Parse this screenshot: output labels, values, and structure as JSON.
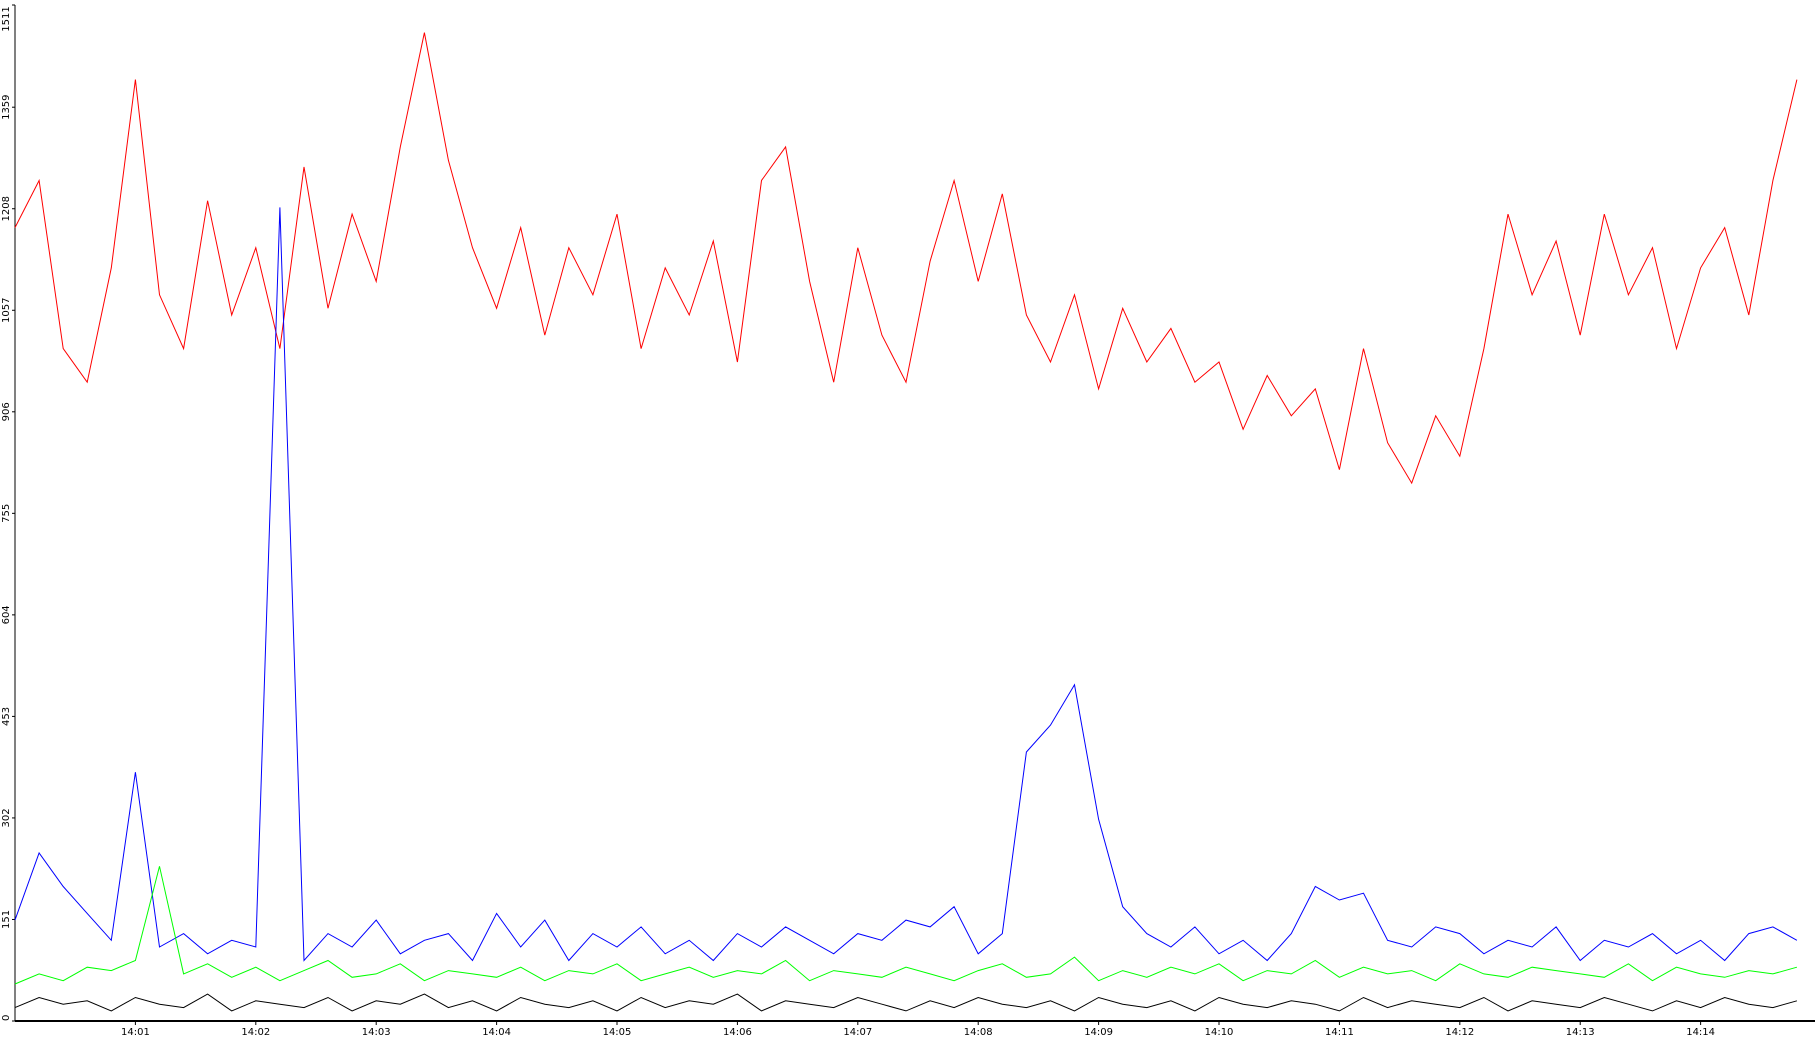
{
  "chart_data": {
    "type": "line",
    "x": [
      0,
      0.2,
      0.4,
      0.6,
      0.8,
      1,
      1.2,
      1.4,
      1.6,
      1.8,
      2,
      2.2,
      2.4,
      2.6,
      2.8,
      3,
      3.2,
      3.4,
      3.6,
      3.8,
      4,
      4.2,
      4.4,
      4.6,
      4.8,
      5,
      5.2,
      5.4,
      5.6,
      5.8,
      6,
      6.2,
      6.4,
      6.6,
      6.8,
      7,
      7.2,
      7.4,
      7.6,
      7.8,
      8,
      8.2,
      8.4,
      8.6,
      8.8,
      9,
      9.2,
      9.4,
      9.6,
      9.8,
      10,
      10.2,
      10.4,
      10.6,
      10.8,
      11,
      11.2,
      11.4,
      11.6,
      11.8,
      12,
      12.2,
      12.4,
      12.6,
      12.8,
      13,
      13.2,
      13.4,
      13.6,
      13.8,
      14,
      14.2,
      14.4,
      14.6,
      14.8
    ],
    "series": [
      {
        "color": "#ff0000",
        "values": [
          1180,
          1250,
          1000,
          950,
          1120,
          1400,
          1080,
          1000,
          1220,
          1050,
          1150,
          1000,
          1270,
          1060,
          1200,
          1100,
          1300,
          1470,
          1280,
          1150,
          1060,
          1180,
          1020,
          1150,
          1080,
          1200,
          1000,
          1120,
          1050,
          1160,
          980,
          1250,
          1300,
          1100,
          950,
          1150,
          1020,
          950,
          1130,
          1250,
          1100,
          1230,
          1050,
          980,
          1080,
          940,
          1060,
          980,
          1030,
          950,
          980,
          880,
          960,
          900,
          940,
          820,
          1000,
          860,
          800,
          900,
          840,
          1000,
          1200,
          1080,
          1160,
          1020,
          1200,
          1080,
          1150,
          1000,
          1120,
          1180,
          1050,
          1250,
          1400
        ]
      },
      {
        "color": "#0000ff",
        "values": [
          150,
          250,
          200,
          160,
          120,
          370,
          110,
          130,
          100,
          120,
          110,
          1210,
          90,
          130,
          110,
          150,
          100,
          120,
          130,
          90,
          160,
          110,
          150,
          90,
          130,
          110,
          140,
          100,
          120,
          90,
          130,
          110,
          140,
          120,
          100,
          130,
          120,
          150,
          140,
          170,
          100,
          130,
          400,
          440,
          500,
          300,
          170,
          130,
          110,
          140,
          100,
          120,
          90,
          130,
          200,
          180,
          190,
          120,
          110,
          140,
          130,
          100,
          120,
          110,
          140,
          90,
          120,
          110,
          130,
          100,
          120,
          90,
          130,
          140,
          120
        ]
      },
      {
        "color": "#00ff00",
        "values": [
          55,
          70,
          60,
          80,
          75,
          90,
          230,
          70,
          85,
          65,
          80,
          60,
          75,
          90,
          65,
          70,
          85,
          60,
          75,
          70,
          65,
          80,
          60,
          75,
          70,
          85,
          60,
          70,
          80,
          65,
          75,
          70,
          90,
          60,
          75,
          70,
          65,
          80,
          70,
          60,
          75,
          85,
          65,
          70,
          95,
          60,
          75,
          65,
          80,
          70,
          85,
          60,
          75,
          70,
          90,
          65,
          80,
          70,
          75,
          60,
          85,
          70,
          65,
          80,
          75,
          70,
          65,
          85,
          60,
          80,
          70,
          65,
          75,
          70,
          80
        ]
      },
      {
        "color": "#000000",
        "values": [
          20,
          35,
          25,
          30,
          15,
          35,
          25,
          20,
          40,
          15,
          30,
          25,
          20,
          35,
          15,
          30,
          25,
          40,
          20,
          30,
          15,
          35,
          25,
          20,
          30,
          15,
          35,
          20,
          30,
          25,
          40,
          15,
          30,
          25,
          20,
          35,
          25,
          15,
          30,
          20,
          35,
          25,
          20,
          30,
          15,
          35,
          25,
          20,
          30,
          15,
          35,
          25,
          20,
          30,
          25,
          15,
          35,
          20,
          30,
          25,
          20,
          35,
          15,
          30,
          25,
          20,
          35,
          25,
          15,
          30,
          20,
          35,
          25,
          20,
          30
        ]
      }
    ],
    "xlim": [
      0,
      14.95
    ],
    "xticks": [
      {
        "value": 1,
        "label": "14:01"
      },
      {
        "value": 2,
        "label": "14:02"
      },
      {
        "value": 3,
        "label": "14:03"
      },
      {
        "value": 4,
        "label": "14:04"
      },
      {
        "value": 5,
        "label": "14:05"
      },
      {
        "value": 6,
        "label": "14:06"
      },
      {
        "value": 7,
        "label": "14:07"
      },
      {
        "value": 8,
        "label": "14:08"
      },
      {
        "value": 9,
        "label": "14:09"
      },
      {
        "value": 10,
        "label": "14:10"
      },
      {
        "value": 11,
        "label": "14:11"
      },
      {
        "value": 12,
        "label": "14:12"
      },
      {
        "value": 13,
        "label": "14:13"
      },
      {
        "value": 14,
        "label": "14:14"
      }
    ],
    "ylim": [
      0,
      1511
    ],
    "yticks": [
      0,
      151,
      302,
      453,
      604,
      755,
      906,
      1057,
      1208,
      1359,
      1511
    ],
    "grid": false
  }
}
